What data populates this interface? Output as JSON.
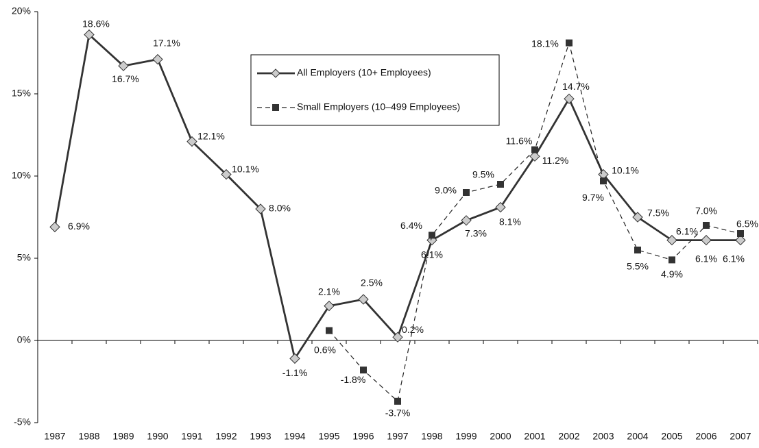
{
  "chart_data": {
    "type": "line",
    "categories": [
      "1987",
      "1988",
      "1989",
      "1990",
      "1991",
      "1992",
      "1993",
      "1994",
      "1995",
      "1996",
      "1997",
      "1998",
      "1999",
      "2000",
      "2001",
      "2002",
      "2003",
      "2004",
      "2005",
      "2006",
      "2007"
    ],
    "series": [
      {
        "name": "All Employers (10+ Employees)",
        "color": "#333333",
        "marker": "diamond",
        "dashed": false,
        "values": [
          6.9,
          18.6,
          16.7,
          17.1,
          12.1,
          10.1,
          8.0,
          -1.1,
          2.1,
          2.5,
          0.2,
          6.1,
          7.3,
          8.1,
          11.2,
          14.7,
          10.1,
          7.5,
          6.1,
          6.1,
          6.1
        ],
        "value_labels": [
          "6.9%",
          "18.6%",
          "16.7%",
          "17.1%",
          "12.1%",
          "10.1%",
          "8.0%",
          "-1.1%",
          "2.1%",
          "2.5%",
          "0.2%",
          "6.1%",
          "7.3%",
          "8.1%",
          "11.2%",
          "14.7%",
          "10.1%",
          "7.5%",
          "6.1%",
          "6.1%",
          "6.1%"
        ]
      },
      {
        "name": "Small Employers (10–499 Employees)",
        "color": "#222222",
        "marker": "square",
        "dashed": true,
        "values": [
          null,
          null,
          null,
          null,
          null,
          null,
          null,
          null,
          0.6,
          -1.8,
          -3.7,
          6.4,
          9.0,
          9.5,
          11.6,
          18.1,
          9.7,
          5.5,
          4.9,
          7.0,
          6.5
        ],
        "value_labels": [
          null,
          null,
          null,
          null,
          null,
          null,
          null,
          null,
          "0.6%",
          "-1.8%",
          "-3.7%",
          "6.4%",
          "9.0%",
          "9.5%",
          "11.6%",
          "18.1%",
          "9.7%",
          "5.5%",
          "4.9%",
          "7.0%",
          "6.5%"
        ]
      }
    ],
    "ylim": [
      -5,
      20
    ],
    "yticks": [
      {
        "value": -5,
        "label": "-5%"
      },
      {
        "value": 0,
        "label": "0%"
      },
      {
        "value": 5,
        "label": "5%"
      },
      {
        "value": 10,
        "label": "10%"
      },
      {
        "value": 15,
        "label": "15%"
      },
      {
        "value": 20,
        "label": "20%"
      }
    ],
    "grid": false
  }
}
